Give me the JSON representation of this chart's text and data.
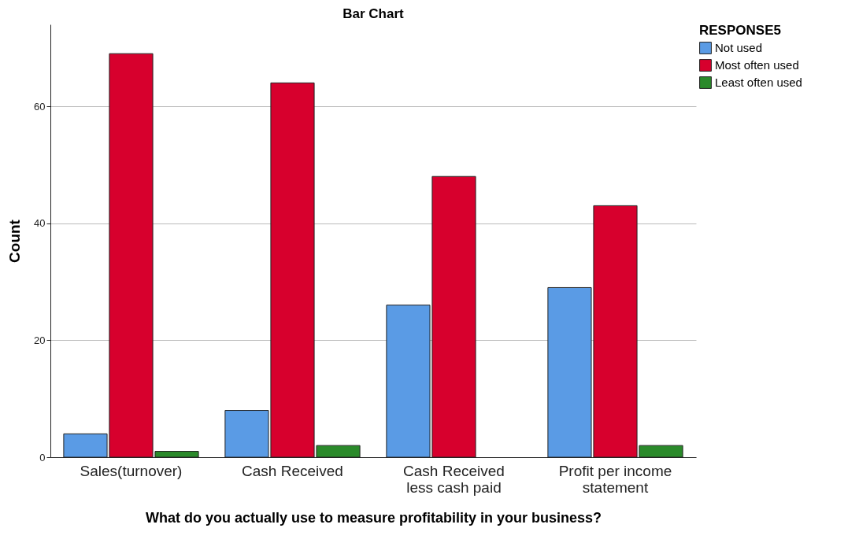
{
  "chart_data": {
    "type": "bar",
    "title": "Bar Chart",
    "xlabel": "What do you actually use to measure profitability in your business?",
    "ylabel": "Count",
    "legend_title": "RESPONSE5",
    "categories": [
      "Sales(turnover)",
      "Cash Received",
      "Cash Received less cash paid",
      "Profit per income statement"
    ],
    "series": [
      {
        "name": "Not used",
        "color": "#5a9be5",
        "values": [
          4,
          8,
          26,
          29
        ]
      },
      {
        "name": "Most often used",
        "color": "#d7002d",
        "values": [
          69,
          64,
          48,
          43
        ]
      },
      {
        "name": "Least often used",
        "color": "#2a8a2a",
        "values": [
          1,
          2,
          null,
          2
        ]
      }
    ],
    "ylim": [
      0,
      74
    ],
    "yticks": [
      0,
      20,
      40,
      60
    ],
    "grid": "y",
    "legend": "top right"
  }
}
